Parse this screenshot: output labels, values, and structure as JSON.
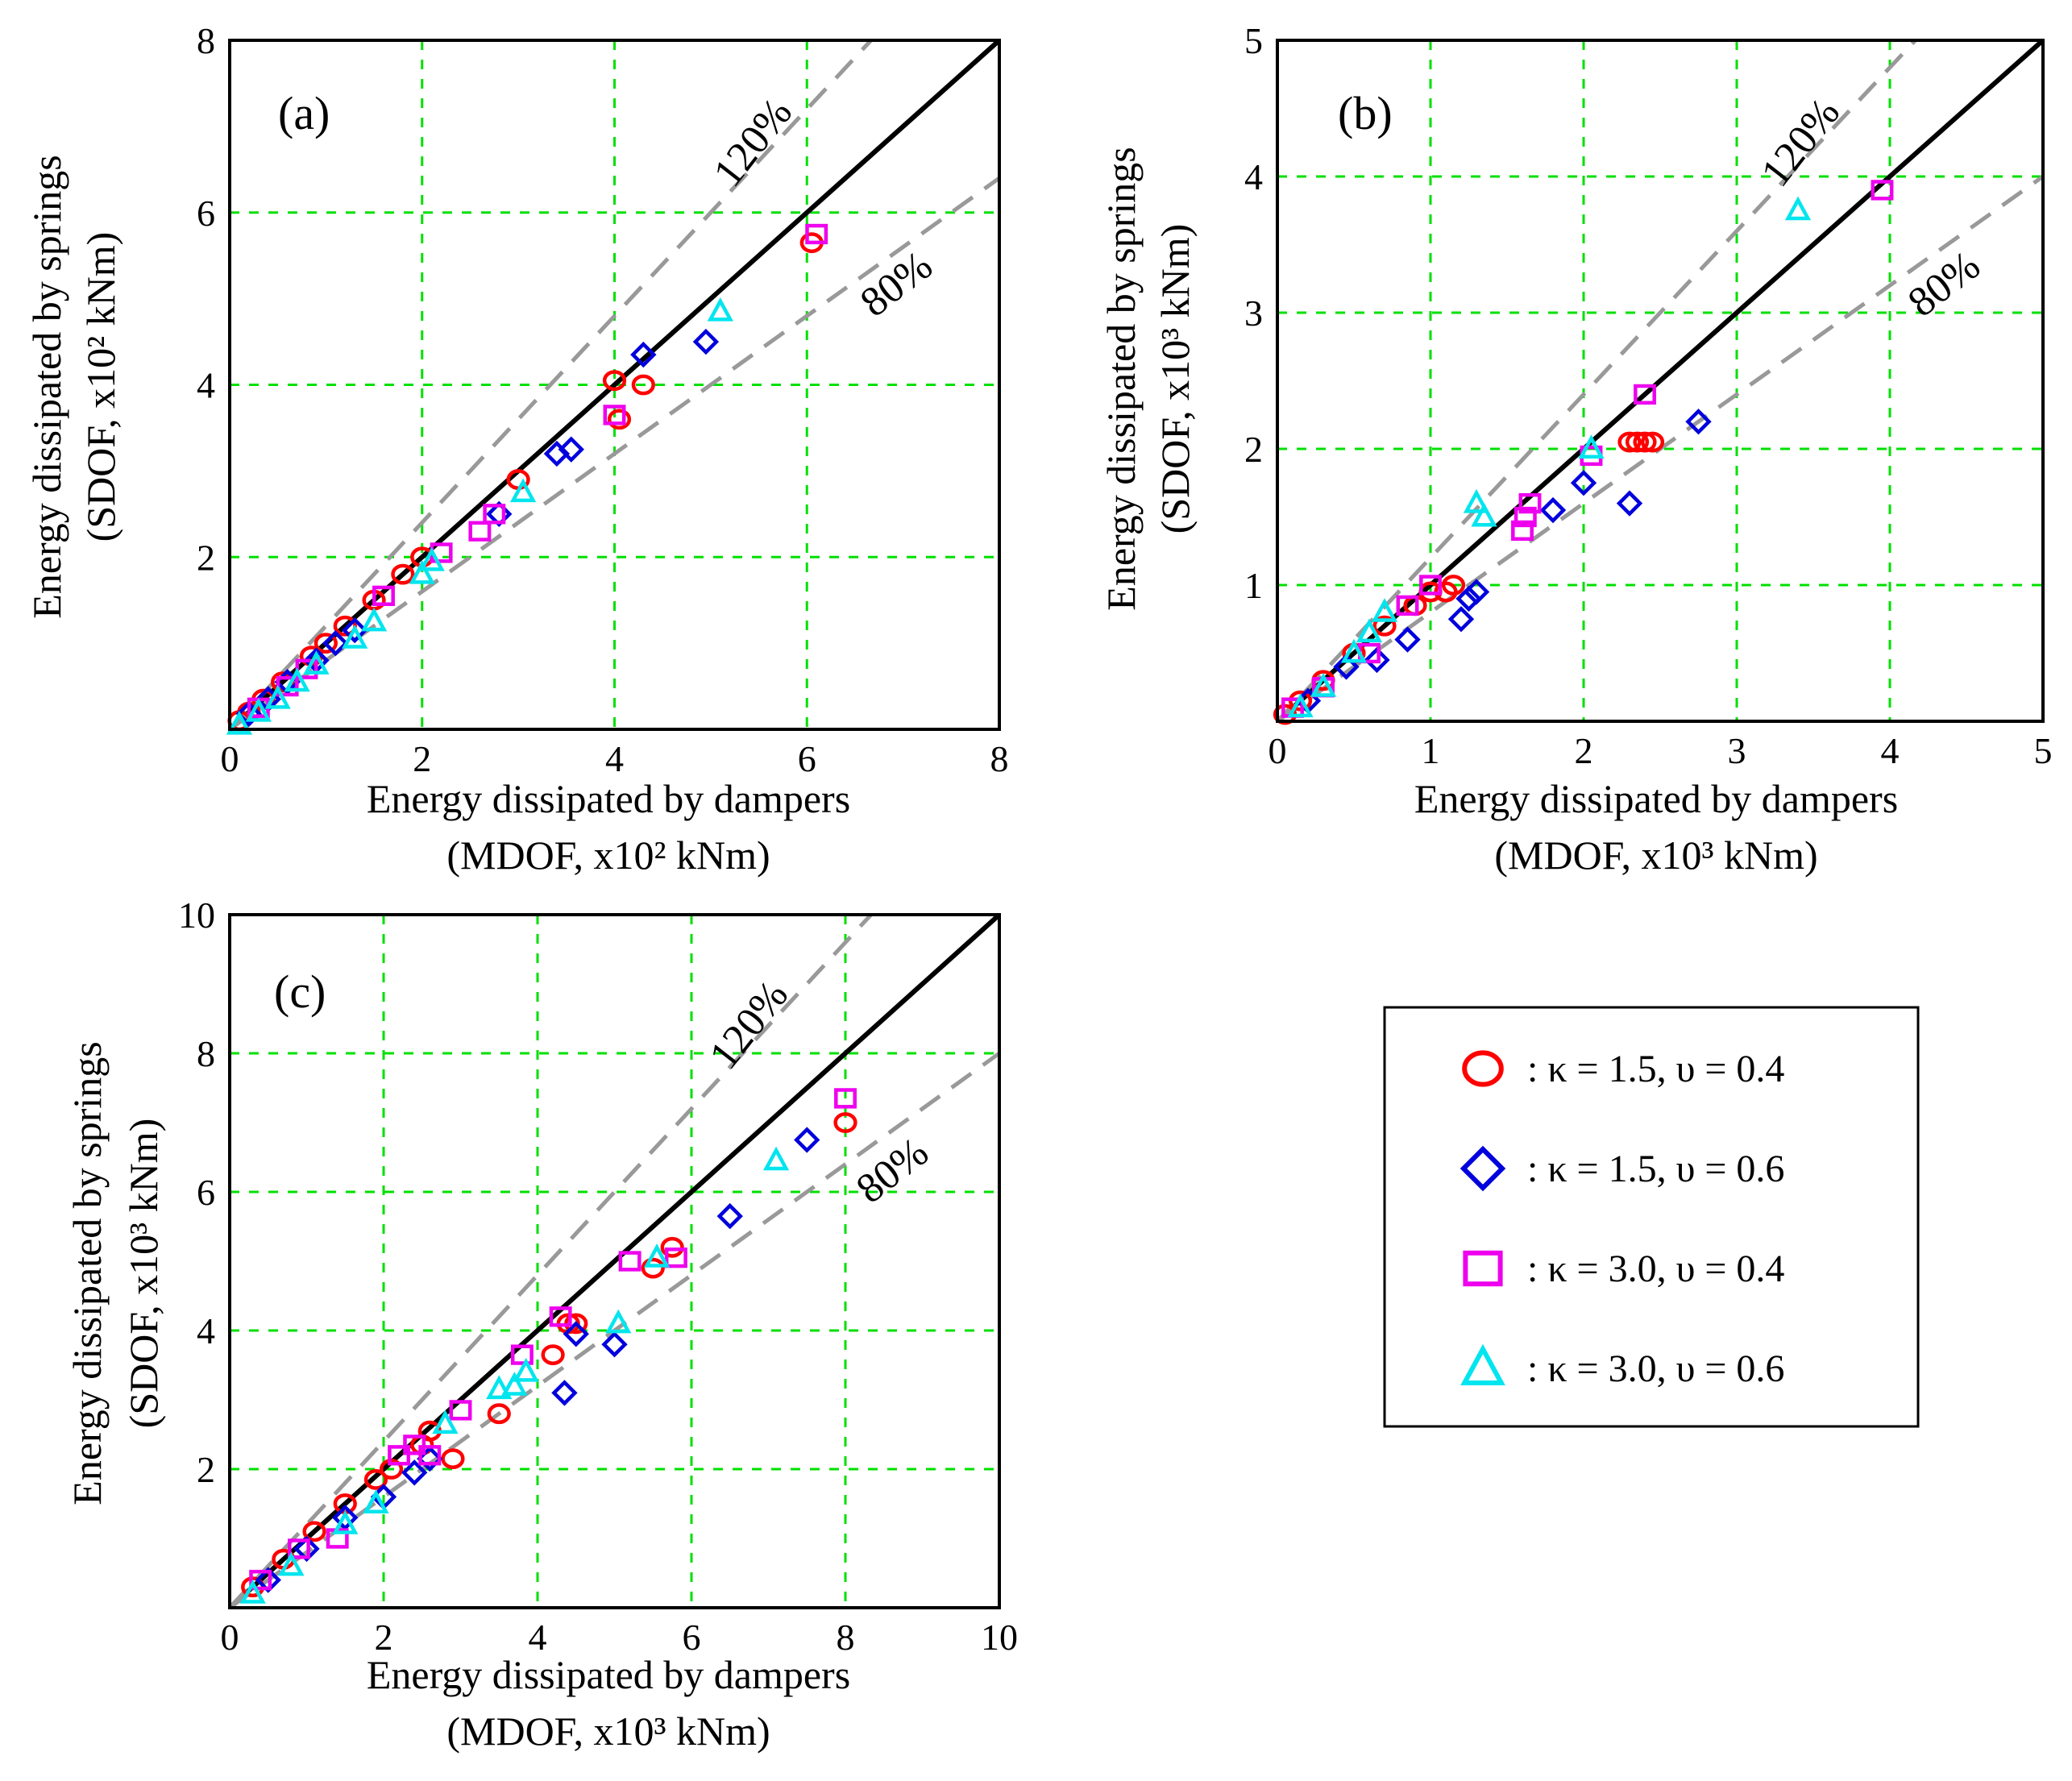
{
  "legend": {
    "items": [
      {
        "series": "s1",
        "label": ": κ = 1.5, υ = 0.4"
      },
      {
        "series": "s2",
        "label": ": κ = 1.5, υ = 0.6"
      },
      {
        "series": "s3",
        "label": ": κ  = 3.0, υ = 0.4"
      },
      {
        "series": "s4",
        "label": ": κ = 3.0, υ = 0.6"
      }
    ]
  },
  "styles": {
    "s1": {
      "marker": "circle",
      "color": "#ff0000"
    },
    "s2": {
      "marker": "diamond",
      "color": "#0000dd"
    },
    "s3": {
      "marker": "square",
      "color": "#ee00ee"
    },
    "s4": {
      "marker": "triangle",
      "color": "#00e5ee"
    },
    "grid_color": "#00e000",
    "ref_color": "#999999"
  },
  "chart_data": [
    {
      "type": "scatter",
      "panel_label": "(a)",
      "xlabel_line1": "Energy dissipated by dampers",
      "xlabel_line2": "(MDOF,  x10² kNm)",
      "ylabel_line1": "Energy dissipated by springs",
      "ylabel_line2": "(SDOF, x10²  kNm)",
      "xlim": [
        0,
        8
      ],
      "ylim": [
        0,
        8
      ],
      "xticks": [
        0,
        2,
        4,
        6,
        8
      ],
      "yticks": [
        2,
        4,
        6,
        8
      ],
      "grid": true,
      "reference_lines": [
        {
          "label": "120%",
          "ratio": 1.2
        },
        {
          "label": "80%",
          "ratio": 0.8
        }
      ],
      "series": [
        {
          "name": "κ = 1.5, υ = 0.4",
          "key": "s1",
          "x": [
            0.1,
            0.2,
            0.35,
            0.55,
            0.85,
            1.0,
            1.2,
            1.5,
            1.8,
            2.0,
            3.0,
            4.0,
            4.3,
            4.05,
            6.05
          ],
          "y": [
            0.1,
            0.2,
            0.35,
            0.55,
            0.85,
            1.0,
            1.2,
            1.5,
            1.8,
            2.0,
            2.9,
            4.05,
            4.0,
            3.6,
            5.65
          ]
        },
        {
          "name": "κ = 1.5, υ = 0.6",
          "key": "s2",
          "x": [
            0.2,
            0.4,
            0.6,
            0.9,
            1.1,
            1.3,
            2.8,
            3.4,
            3.55,
            4.3,
            4.95
          ],
          "y": [
            0.18,
            0.35,
            0.55,
            0.8,
            1.0,
            1.15,
            2.5,
            3.2,
            3.25,
            4.35,
            4.5
          ]
        },
        {
          "name": "κ = 3.0, υ = 0.4",
          "key": "s3",
          "x": [
            0.3,
            0.6,
            0.8,
            1.6,
            2.2,
            2.6,
            2.75,
            4.0,
            6.1
          ],
          "y": [
            0.25,
            0.5,
            0.7,
            1.55,
            2.05,
            2.3,
            2.5,
            3.65,
            5.75
          ]
        },
        {
          "name": "κ = 3.0, υ = 0.6",
          "key": "s4",
          "x": [
            0.1,
            0.3,
            0.5,
            0.7,
            0.9,
            1.3,
            1.5,
            2.0,
            2.1,
            3.05,
            5.1
          ],
          "y": [
            0.05,
            0.2,
            0.35,
            0.55,
            0.75,
            1.05,
            1.25,
            1.8,
            1.95,
            2.75,
            4.85
          ]
        }
      ]
    },
    {
      "type": "scatter",
      "panel_label": "(b)",
      "xlabel_line1": "Energy dissipated by dampers",
      "xlabel_line2": "(MDOF, x10³ kNm)",
      "ylabel_line1": "Energy dissipated by springs",
      "ylabel_line2": "(SDOF, x10³ kNm)",
      "xlim": [
        0,
        5
      ],
      "ylim": [
        0,
        5
      ],
      "xticks": [
        0,
        1,
        2,
        3,
        4,
        5
      ],
      "yticks": [
        1,
        2,
        3,
        4,
        5
      ],
      "grid": true,
      "reference_lines": [
        {
          "label": "120%",
          "ratio": 1.2
        },
        {
          "label": "80%",
          "ratio": 0.8
        }
      ],
      "series": [
        {
          "name": "κ = 1.5, υ = 0.4",
          "key": "s1",
          "x": [
            0.05,
            0.15,
            0.3,
            0.5,
            0.7,
            0.9,
            1.0,
            1.1,
            1.15,
            2.3,
            2.35,
            2.4,
            2.45
          ],
          "y": [
            0.05,
            0.15,
            0.3,
            0.5,
            0.7,
            0.85,
            0.95,
            0.95,
            1.0,
            2.05,
            2.05,
            2.05,
            2.05
          ]
        },
        {
          "name": "κ = 1.5, υ = 0.6",
          "key": "s2",
          "x": [
            0.2,
            0.45,
            0.65,
            0.85,
            1.2,
            1.25,
            1.3,
            1.8,
            2.0,
            2.3,
            2.75
          ],
          "y": [
            0.15,
            0.4,
            0.45,
            0.6,
            0.75,
            0.9,
            0.95,
            1.55,
            1.75,
            1.6,
            2.2
          ]
        },
        {
          "name": "κ = 3.0, υ = 0.4",
          "key": "s3",
          "x": [
            0.1,
            0.3,
            0.6,
            0.85,
            1.0,
            1.6,
            1.62,
            1.65,
            2.05,
            2.4,
            3.95
          ],
          "y": [
            0.1,
            0.25,
            0.5,
            0.85,
            1.0,
            1.4,
            1.5,
            1.6,
            1.95,
            2.4,
            3.9
          ]
        },
        {
          "name": "κ = 3.0, υ = 0.6",
          "key": "s4",
          "x": [
            0.15,
            0.3,
            0.5,
            0.6,
            0.7,
            1.3,
            1.35,
            2.05,
            3.4
          ],
          "y": [
            0.1,
            0.25,
            0.5,
            0.65,
            0.8,
            1.6,
            1.5,
            2.0,
            3.75
          ]
        }
      ]
    },
    {
      "type": "scatter",
      "panel_label": "(c)",
      "xlabel_line1": "Energy dissipated by dampers",
      "xlabel_line2": "(MDOF, x10³ kNm)",
      "ylabel_line1": "Energy dissipated by springs",
      "ylabel_line2": "(SDOF, x10³ kNm)",
      "xlim": [
        0,
        10
      ],
      "ylim": [
        0,
        10
      ],
      "xticks": [
        0,
        2,
        4,
        6,
        8,
        10
      ],
      "yticks": [
        2,
        4,
        6,
        8,
        10
      ],
      "grid": true,
      "reference_lines": [
        {
          "label": "120%",
          "ratio": 1.2
        },
        {
          "label": "80%",
          "ratio": 0.8
        }
      ],
      "series": [
        {
          "name": "κ = 1.5, υ = 0.4",
          "key": "s1",
          "x": [
            0.3,
            0.7,
            1.1,
            1.5,
            1.9,
            2.1,
            2.5,
            2.6,
            2.9,
            3.5,
            4.4,
            4.5,
            4.2,
            5.5,
            5.75,
            8.0
          ],
          "y": [
            0.3,
            0.7,
            1.1,
            1.5,
            1.85,
            2.0,
            2.35,
            2.55,
            2.15,
            2.8,
            4.1,
            4.1,
            3.65,
            4.9,
            5.2,
            7.0
          ]
        },
        {
          "name": "κ = 1.5, υ = 0.6",
          "key": "s2",
          "x": [
            0.5,
            1.0,
            1.5,
            2.0,
            2.4,
            2.6,
            4.35,
            4.5,
            5.0,
            6.5,
            7.5
          ],
          "y": [
            0.4,
            0.85,
            1.3,
            1.6,
            1.95,
            2.15,
            3.1,
            3.95,
            3.8,
            5.65,
            6.75
          ]
        },
        {
          "name": "κ = 3.0, υ = 0.4",
          "key": "s3",
          "x": [
            0.4,
            0.9,
            1.4,
            2.2,
            2.4,
            2.6,
            3.0,
            3.8,
            4.3,
            5.2,
            5.8,
            8.0
          ],
          "y": [
            0.4,
            0.85,
            1.0,
            2.2,
            2.35,
            2.2,
            2.85,
            3.65,
            4.2,
            5.0,
            5.05,
            7.35
          ]
        },
        {
          "name": "κ = 3.0, υ = 0.6",
          "key": "s4",
          "x": [
            0.3,
            0.8,
            1.5,
            1.9,
            2.8,
            3.5,
            3.7,
            3.85,
            5.05,
            5.55,
            7.1
          ],
          "y": [
            0.2,
            0.6,
            1.2,
            1.5,
            2.65,
            3.15,
            3.2,
            3.4,
            4.1,
            5.05,
            6.45
          ]
        }
      ]
    }
  ]
}
